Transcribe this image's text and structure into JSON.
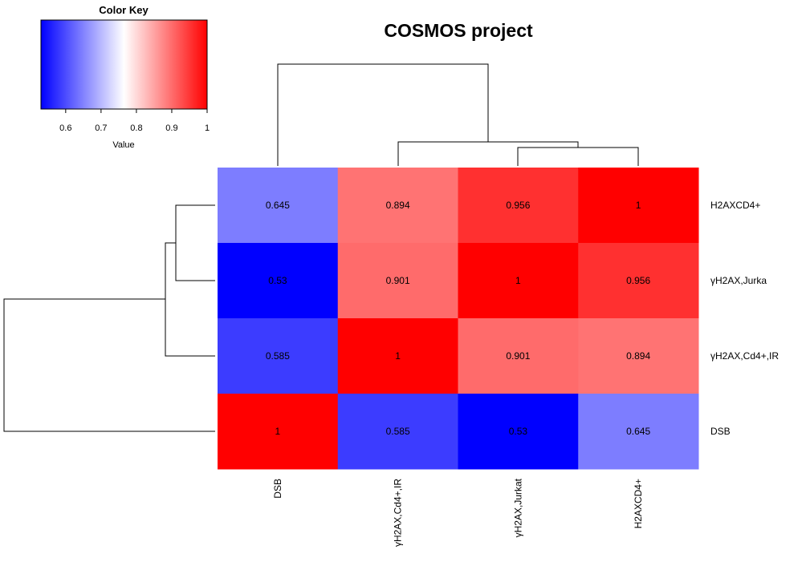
{
  "chart_data": {
    "type": "heatmap",
    "title": "COSMOS project",
    "columns": [
      "DSB",
      "γH2AX,Cd4+,IR",
      "γH2AX,Jurkat",
      "H2AXCD4+"
    ],
    "rows": [
      "H2AXCD4+",
      "γH2AX,Jurka",
      "γH2AX,Cd4+,IR",
      "DSB"
    ],
    "values": [
      [
        0.645,
        0.894,
        0.956,
        1
      ],
      [
        0.53,
        0.901,
        1,
        0.956
      ],
      [
        0.585,
        1,
        0.901,
        0.894
      ],
      [
        1,
        0.585,
        0.53,
        0.645
      ]
    ],
    "cell_labels": [
      [
        "0.645",
        "0.894",
        "0.956",
        "1"
      ],
      [
        "0.53",
        "0.901",
        "1",
        "0.956"
      ],
      [
        "0.585",
        "1",
        "0.901",
        "0.894"
      ],
      [
        "1",
        "0.585",
        "0.53",
        "0.645"
      ]
    ],
    "color_scale": {
      "min": 0.53,
      "mid": 0.765,
      "max": 1,
      "low_color": "#0000ff",
      "mid_color": "#ffffff",
      "high_color": "#ff0000"
    },
    "color_key": {
      "title": "Color Key",
      "xlabel": "Value",
      "ticks": [
        0.6,
        0.7,
        0.8,
        0.9,
        1
      ],
      "tick_labels": [
        "0.6",
        "0.7",
        "0.8",
        "0.9",
        "1"
      ]
    },
    "column_dendrogram": "top",
    "row_dendrogram": "left",
    "grid": false
  }
}
